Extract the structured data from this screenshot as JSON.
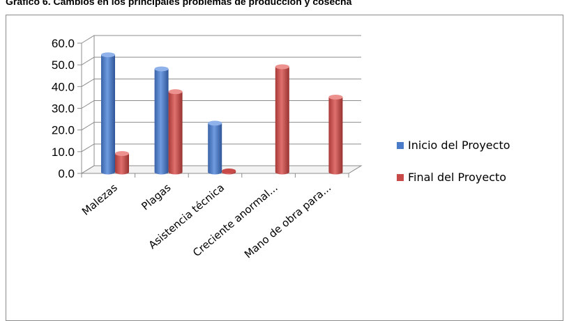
{
  "header": {
    "title": "Gráfico 6.  Cambios en los principales problemas de producción y cosecha"
  },
  "chart_data": {
    "type": "bar",
    "title": "",
    "xlabel": "",
    "ylabel": "",
    "ylim": [
      0,
      60
    ],
    "y_ticks": [
      "0.0",
      "10.0",
      "20.0",
      "30.0",
      "40.0",
      "50.0",
      "60.0"
    ],
    "grid": true,
    "legend_position": "right",
    "categories": [
      "Malezas",
      "Plagas",
      "Asistencia técnica",
      "Creciente anormal...",
      "Mano de obra para..."
    ],
    "series": [
      {
        "name": "Inicio del Proyecto",
        "color": "#4a7bc8",
        "values": [
          54,
          47.5,
          22.5,
          0,
          0
        ]
      },
      {
        "name": "Final del Proyecto",
        "color": "#c84a48",
        "values": [
          8.5,
          37,
          0.5,
          48.5,
          34.5
        ]
      }
    ]
  }
}
